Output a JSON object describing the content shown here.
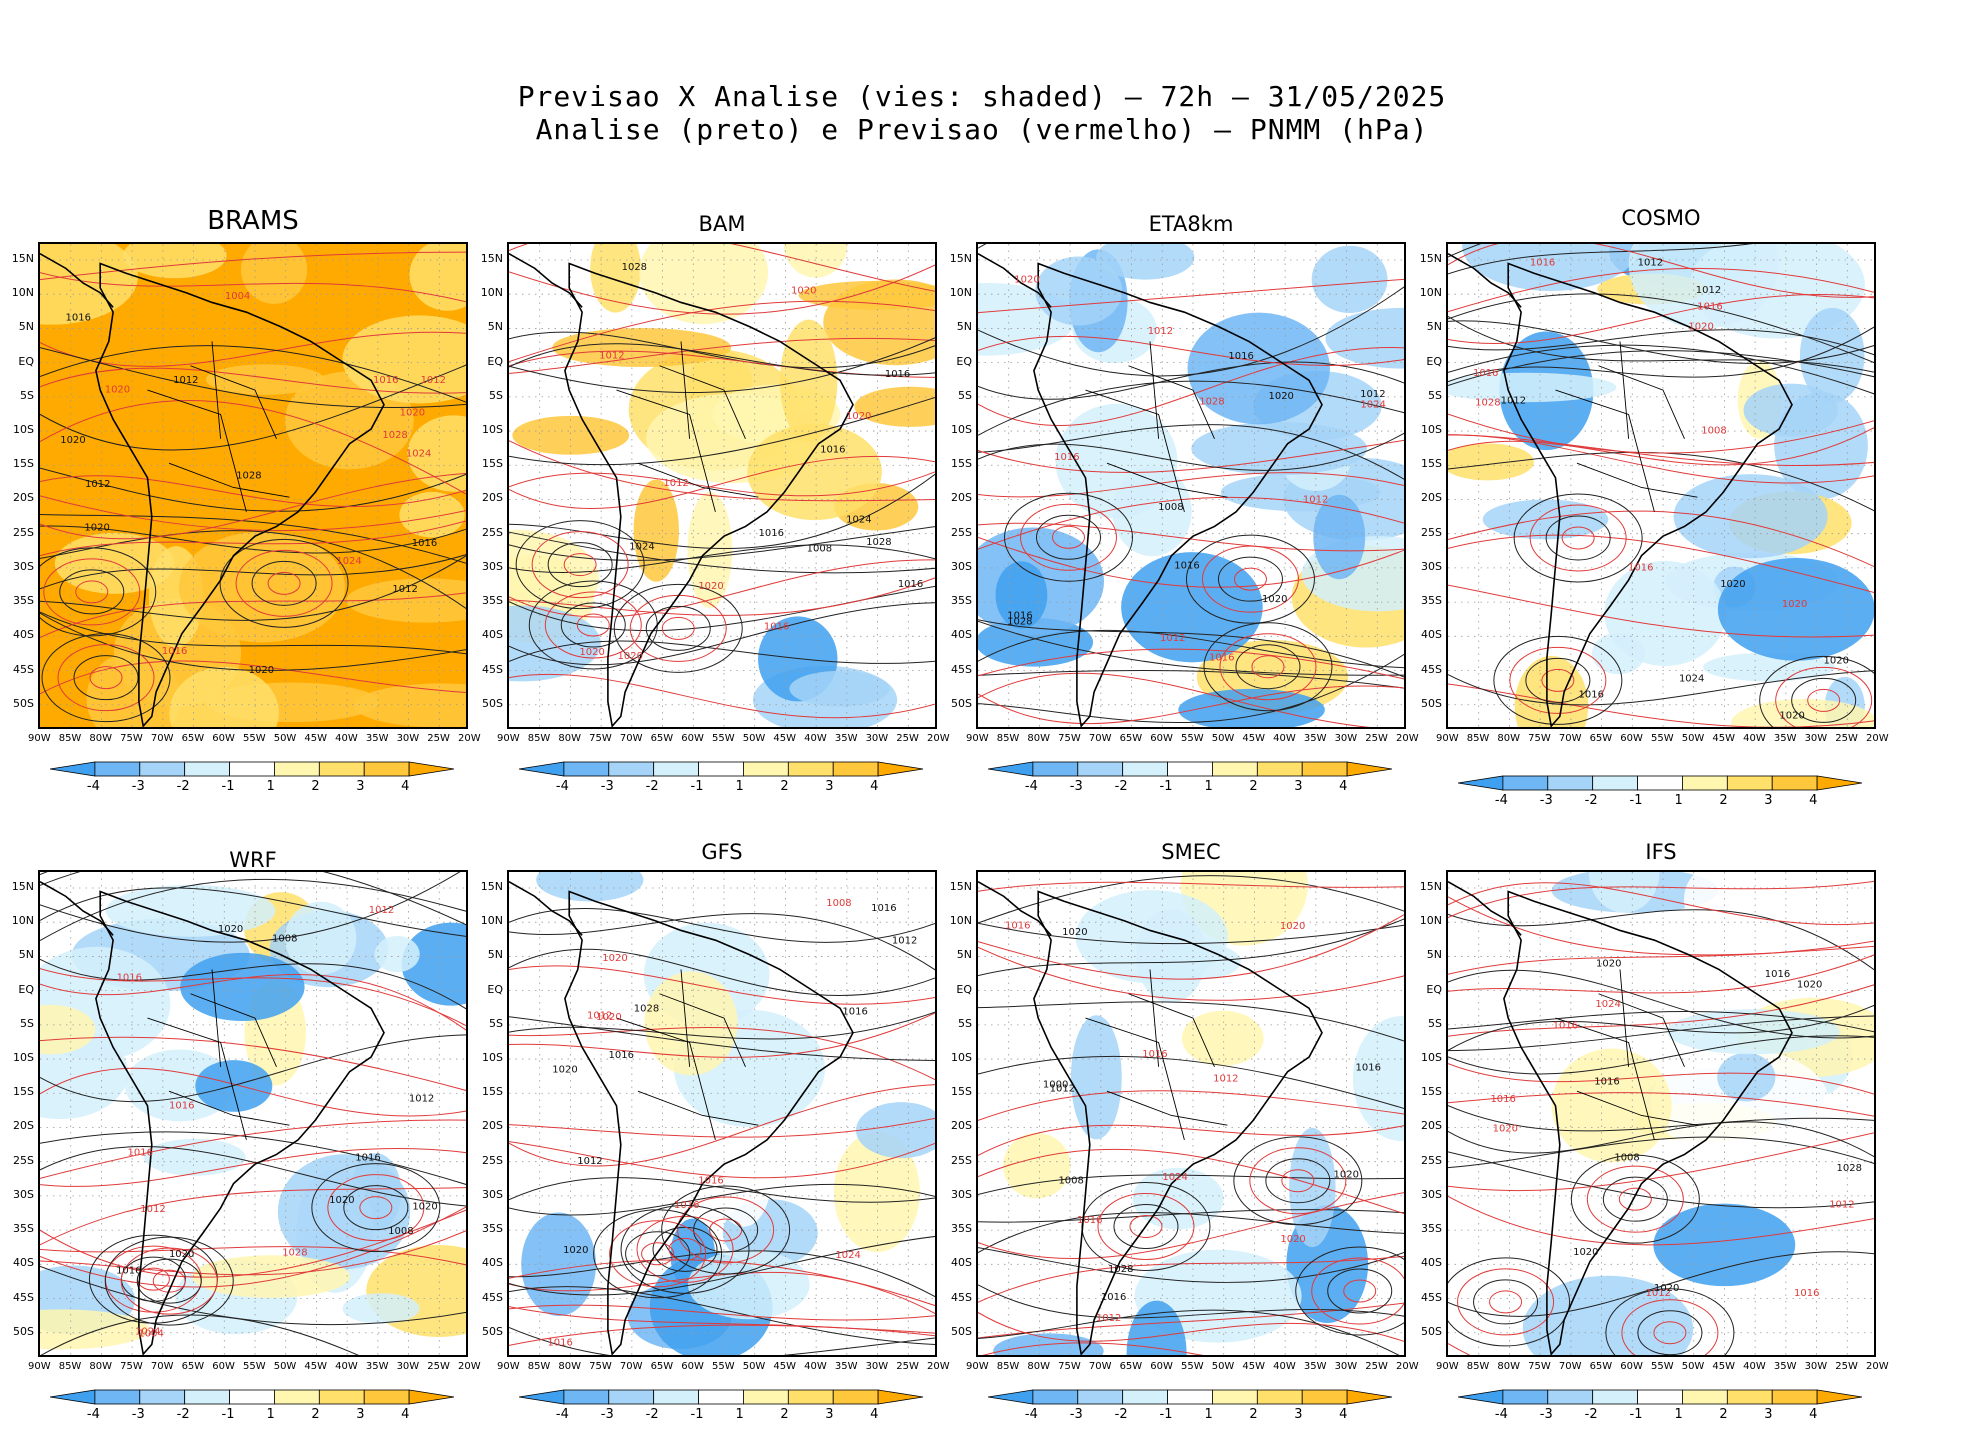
{
  "title": {
    "line1": "Previsao X Analise (vies: shaded) – 72h – 31/05/2025",
    "line2": "Analise (preto) e Previsao (vermelho) – PNMM (hPa)"
  },
  "lat_labels": [
    "15N",
    "10N",
    "5N",
    "EQ",
    "5S",
    "10S",
    "15S",
    "20S",
    "25S",
    "30S",
    "35S",
    "40S",
    "45S",
    "50S"
  ],
  "lon_labels": [
    "90W",
    "85W",
    "80W",
    "75W",
    "70W",
    "65W",
    "60W",
    "55W",
    "50W",
    "45W",
    "40W",
    "35W",
    "30W",
    "25W",
    "20W"
  ],
  "colorbar": {
    "labels": [
      "-4",
      "-3",
      "-2",
      "-1",
      "1",
      "2",
      "3",
      "4"
    ],
    "colors": [
      "#3fa0f0",
      "#6eb6f4",
      "#a5d4f8",
      "#d4f0fb",
      "#ffffff",
      "#fff6b0",
      "#ffe06a",
      "#ffc83c",
      "#ffaa00"
    ]
  },
  "panels": [
    {
      "name": "BRAMS",
      "bias": "warm-all",
      "labels": [
        "1016",
        "1012",
        "1012",
        "1016",
        "1016",
        "1020",
        "1020",
        "1024",
        "1020",
        "1016",
        "1012",
        "1028",
        "1028",
        "1024",
        "1020",
        "1004",
        "1012",
        "1020"
      ]
    },
    {
      "name": "BAM",
      "bias": "warm",
      "labels": [
        "1016",
        "1012",
        "1016",
        "1020",
        "1016",
        "1020",
        "1016",
        "1020",
        "1024",
        "1020",
        "1028",
        "1020",
        "1008",
        "1012",
        "1024",
        "1016",
        "1028"
      ]
    },
    {
      "name": "ETA8km",
      "bias": "cold",
      "labels": [
        "1016",
        "1012",
        "1016",
        "1016",
        "1012",
        "1016",
        "1020",
        "1028",
        "1020",
        "1012",
        "1008",
        "1020",
        "1028",
        "1024",
        "1016",
        "1012"
      ]
    },
    {
      "name": "COSMO",
      "bias": "mixed",
      "labels": [
        "1012",
        "1016",
        "1012",
        "1016",
        "1020",
        "1016",
        "1020",
        "1020",
        "1024",
        "1028",
        "1012",
        "1008",
        "1016",
        "1020",
        "1020",
        "1016"
      ]
    },
    {
      "name": "WRF",
      "bias": "mixed",
      "labels": [
        "1020",
        "1012",
        "1016",
        "1016",
        "1012",
        "1016",
        "1020",
        "1016",
        "1020",
        "1028",
        "1016",
        "1012",
        "1008",
        "1004",
        "1008",
        "1024",
        "1020"
      ]
    },
    {
      "name": "GFS",
      "bias": "light",
      "labels": [
        "1012",
        "1016",
        "1016",
        "1012",
        "1016",
        "1020",
        "1020",
        "1016",
        "1028",
        "1020",
        "1012",
        "1008",
        "1016",
        "1024",
        "1020",
        "1016"
      ]
    },
    {
      "name": "SMEC",
      "bias": "light",
      "labels": [
        "1016",
        "1012",
        "1016",
        "1016",
        "1020",
        "1016",
        "1020",
        "1020",
        "1012",
        "1020",
        "1008",
        "1016",
        "1000",
        "1024",
        "1028",
        "1012"
      ]
    },
    {
      "name": "IFS",
      "bias": "light",
      "labels": [
        "1016",
        "1012",
        "1016",
        "1016",
        "1020",
        "1016",
        "1020",
        "1020",
        "1028",
        "1024",
        "1020",
        "1012",
        "1008",
        "1016",
        "1020"
      ]
    }
  ]
}
